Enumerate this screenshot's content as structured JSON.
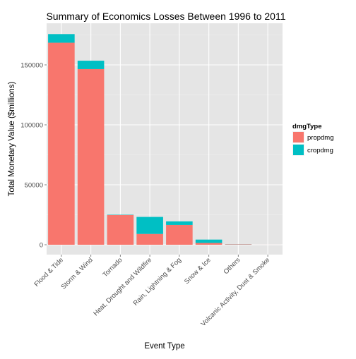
{
  "chart_data": {
    "type": "bar",
    "stacked": true,
    "title": "Summary of Economics Losses Between 1996 to 2011",
    "xlabel": "Event Type",
    "ylabel": "Total Monetary Value ($millions)",
    "ylim": [
      0,
      180000
    ],
    "yticks": [
      0,
      50000,
      100000,
      150000
    ],
    "ytick_labels": [
      "0",
      "50000",
      "100000",
      "150000"
    ],
    "grid": true,
    "categories": [
      "Flood & Tide",
      "Storm & Wind",
      "Tornado",
      "Heat, Drought and Wildfire",
      "Rain, Lightning & Fog",
      "Snow & Ice",
      "Others",
      "Volcanic Activity, Dust & Smoke"
    ],
    "series": [
      {
        "name": "propdmg",
        "color": "#F8766D",
        "values": [
          168500,
          146500,
          24800,
          9000,
          16500,
          1500,
          300,
          20
        ]
      },
      {
        "name": "cropdmg",
        "color": "#00BFC4",
        "values": [
          7200,
          7000,
          300,
          14200,
          3000,
          2800,
          100,
          0
        ]
      }
    ],
    "legend": {
      "title": "dmgType",
      "position": "right"
    }
  }
}
